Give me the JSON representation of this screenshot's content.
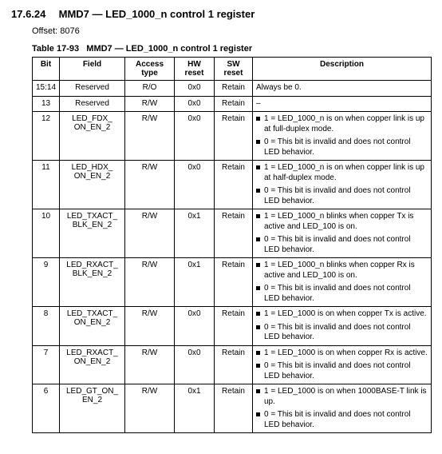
{
  "section": {
    "number": "17.6.24",
    "title": "MMD7 — LED_1000_n control 1 register"
  },
  "offset_label": "Offset:",
  "offset_value": "8076",
  "table_caption_prefix": "Table 17-93",
  "table_caption_title": "MMD7 — LED_1000_n control 1 register",
  "columns": [
    "Bit",
    "Field",
    "Access type",
    "HW reset",
    "SW reset",
    "Description"
  ],
  "rows": [
    {
      "bit": "15:14",
      "field": "Reserved",
      "access": "R/O",
      "hw": "0x0",
      "sw": "Retain",
      "desc_plain": "Always be 0."
    },
    {
      "bit": "13",
      "field": "Reserved",
      "access": "R/W",
      "hw": "0x0",
      "sw": "Retain",
      "desc_plain": "–"
    },
    {
      "bit": "12",
      "field": "LED_FDX_\nON_EN_2",
      "access": "R/W",
      "hw": "0x0",
      "sw": "Retain",
      "desc_list": [
        "1 = LED_1000_n is on when copper link is up at full-duplex mode.",
        "0 = This bit is invalid and does not control LED behavior."
      ]
    },
    {
      "bit": "11",
      "field": "LED_HDX_\nON_EN_2",
      "access": "R/W",
      "hw": "0x0",
      "sw": "Retain",
      "desc_list": [
        "1 = LED_1000_n is on when copper link is up at half-duplex mode.",
        "0 = This bit is invalid and does not control LED behavior."
      ]
    },
    {
      "bit": "10",
      "field": "LED_TXACT_\nBLK_EN_2",
      "access": "R/W",
      "hw": "0x1",
      "sw": "Retain",
      "desc_list": [
        "1 = LED_1000_n blinks when copper Tx is active and LED_100 is on.",
        "0 = This bit is invalid and does not control LED behavior."
      ]
    },
    {
      "bit": "9",
      "field": "LED_RXACT_\nBLK_EN_2",
      "access": "R/W",
      "hw": "0x1",
      "sw": "Retain",
      "desc_list": [
        "1 = LED_1000_n blinks when copper Rx is active and LED_100 is on.",
        "0 = This bit is invalid and does not control LED behavior."
      ]
    },
    {
      "bit": "8",
      "field": "LED_TXACT_\nON_EN_2",
      "access": "R/W",
      "hw": "0x0",
      "sw": "Retain",
      "desc_list": [
        "1 = LED_1000 is on when copper Tx is active.",
        "0 = This bit is invalid and does not control LED behavior."
      ]
    },
    {
      "bit": "7",
      "field": "LED_RXACT_\nON_EN_2",
      "access": "R/W",
      "hw": "0x0",
      "sw": "Retain",
      "desc_list": [
        "1 = LED_1000 is on when copper Rx is active.",
        "0 = This bit is invalid and does not control LED behavior."
      ]
    },
    {
      "bit": "6",
      "field": "LED_GT_ON_\nEN_2",
      "access": "R/W",
      "hw": "0x1",
      "sw": "Retain",
      "desc_list": [
        "1 = LED_1000 is on when 1000BASE-T link is up.",
        "0 = This bit is invalid and does not control LED behavior."
      ]
    }
  ]
}
